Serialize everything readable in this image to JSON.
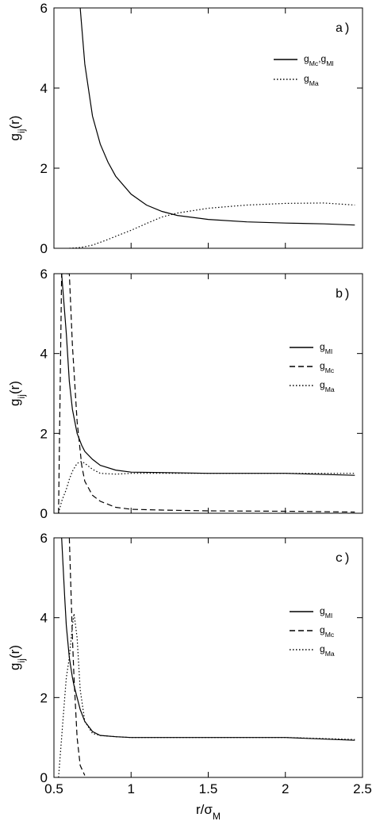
{
  "chart_data": [
    {
      "type": "line",
      "label": "a)",
      "ylabel": [
        "g",
        "ij",
        "(r)"
      ],
      "x": [
        0.55,
        0.6,
        0.67,
        0.7,
        0.75,
        0.8,
        0.85,
        0.9,
        1.0,
        1.1,
        1.2,
        1.3,
        1.5,
        1.75,
        2.0,
        2.25,
        2.45
      ],
      "series": [
        {
          "name": [
            "g",
            "Mc",
            ",g",
            "MI"
          ],
          "color": "#000",
          "dash": "solid",
          "values": [
            null,
            null,
            6,
            4.6,
            3.3,
            2.6,
            2.15,
            1.8,
            1.35,
            1.08,
            0.92,
            0.82,
            0.72,
            0.66,
            0.63,
            0.61,
            0.58
          ]
        },
        {
          "name": [
            "g",
            "Ma"
          ],
          "color": "#000",
          "dash": "dotted",
          "values": [
            null,
            0,
            0.02,
            0.04,
            0.08,
            0.15,
            0.22,
            0.3,
            0.45,
            0.62,
            0.78,
            0.88,
            1.0,
            1.08,
            1.12,
            1.13,
            1.08
          ]
        }
      ],
      "xlim": [
        0.5,
        2.5
      ],
      "xticks": [
        0.5,
        1,
        1.5,
        2,
        2.5
      ],
      "ylim": [
        0,
        6
      ],
      "yticks": [
        0,
        2,
        4,
        6
      ]
    },
    {
      "type": "line",
      "label": "b)",
      "ylabel": [
        "g",
        "ij",
        "(r)"
      ],
      "x": [
        0.53,
        0.55,
        0.58,
        0.6,
        0.62,
        0.65,
        0.68,
        0.7,
        0.75,
        0.8,
        0.9,
        1.0,
        1.2,
        1.5,
        2.0,
        2.45
      ],
      "series": [
        {
          "name": [
            "g",
            "MI"
          ],
          "color": "#000",
          "dash": "solid",
          "values": [
            null,
            6,
            4.5,
            3.3,
            2.6,
            2.0,
            1.7,
            1.55,
            1.35,
            1.2,
            1.08,
            1.03,
            1.02,
            1.0,
            1.0,
            0.95
          ]
        },
        {
          "name": [
            "g",
            "Mc"
          ],
          "color": "#000",
          "dash": "dashed",
          "values": [
            0,
            6,
            6,
            6,
            4.2,
            2.3,
            1.2,
            0.8,
            0.45,
            0.3,
            0.15,
            0.1,
            0.08,
            0.06,
            0.05,
            0.03
          ]
        },
        {
          "name": [
            "g",
            "Ma"
          ],
          "color": "#000",
          "dash": "dotted",
          "values": [
            0,
            0.3,
            0.6,
            0.85,
            1.05,
            1.25,
            1.3,
            1.25,
            1.1,
            1.0,
            0.98,
            1.0,
            1.0,
            1.0,
            1.0,
            1.0
          ]
        }
      ],
      "xlim": [
        0.5,
        2.5
      ],
      "xticks": [
        0.5,
        1,
        1.5,
        2,
        2.5
      ],
      "ylim": [
        0,
        6
      ],
      "yticks": [
        0,
        2,
        4,
        6
      ]
    },
    {
      "type": "line",
      "label": "c)",
      "ylabel": [
        "g",
        "ij",
        "(r)"
      ],
      "xlabel": [
        "r/σ",
        "M"
      ],
      "x": [
        0.53,
        0.55,
        0.57,
        0.58,
        0.6,
        0.62,
        0.63,
        0.65,
        0.67,
        0.7,
        0.75,
        0.8,
        0.9,
        1.0,
        1.5,
        2.0,
        2.45
      ],
      "series": [
        {
          "name": [
            "g",
            "MI"
          ],
          "color": "#000",
          "dash": "solid",
          "values": [
            null,
            6,
            4.5,
            3.8,
            3.0,
            2.5,
            2.3,
            2.0,
            1.7,
            1.4,
            1.15,
            1.05,
            1.02,
            1.0,
            1.0,
            1.0,
            0.93
          ]
        },
        {
          "name": [
            "g",
            "Mc"
          ],
          "color": "#000",
          "dash": "dashed",
          "values": [
            null,
            null,
            null,
            null,
            6,
            3.5,
            2.5,
            1.0,
            0.3,
            0.05,
            null,
            null,
            null,
            null,
            null,
            null,
            null
          ]
        },
        {
          "name": [
            "g",
            "Ma"
          ],
          "color": "#000",
          "dash": "dotted",
          "values": [
            0,
            1.0,
            2.0,
            2.5,
            3.0,
            3.8,
            4.1,
            3.5,
            2.2,
            1.4,
            1.1,
            1.05,
            1.02,
            1.0,
            1.0,
            1.0,
            0.95
          ]
        }
      ],
      "xlim": [
        0.5,
        2.5
      ],
      "xticks": [
        0.5,
        1,
        1.5,
        2,
        2.5
      ],
      "ylim": [
        0,
        6
      ],
      "yticks": [
        0,
        2,
        4,
        6
      ]
    }
  ]
}
